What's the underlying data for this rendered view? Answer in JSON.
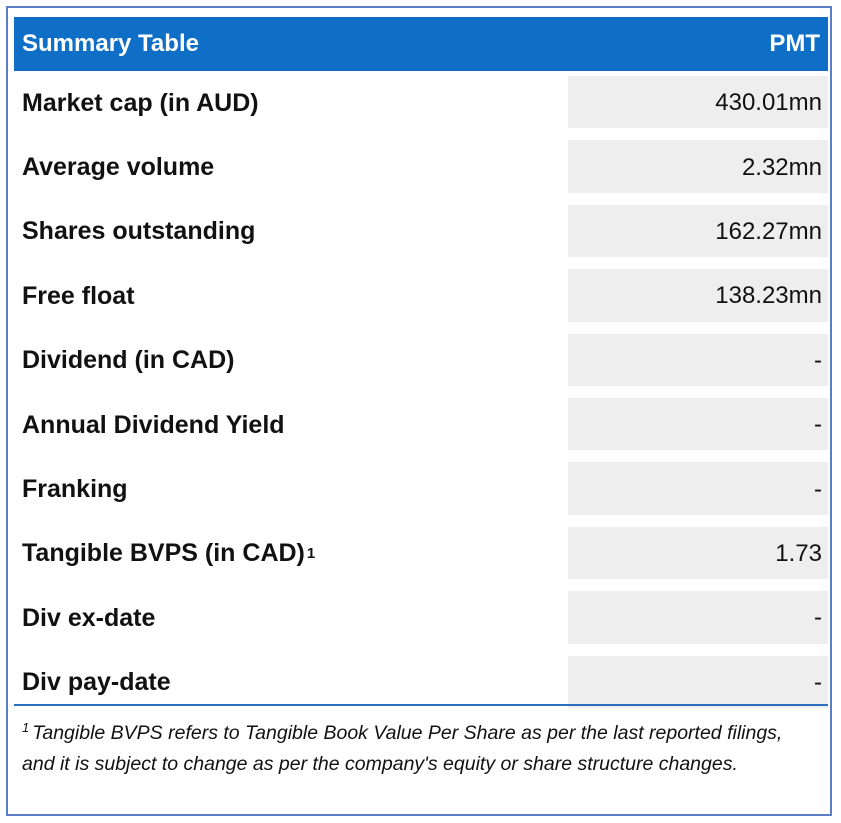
{
  "header": {
    "title": "Summary Table",
    "ticker": "PMT"
  },
  "rows": [
    {
      "label": "Market cap (in AUD)",
      "value": "430.01mn"
    },
    {
      "label": "Average volume",
      "value": "2.32mn"
    },
    {
      "label": "Shares outstanding",
      "value": "162.27mn"
    },
    {
      "label": "Free float",
      "value": "138.23mn"
    },
    {
      "label": "Dividend (in CAD)",
      "value": "-"
    },
    {
      "label": "Annual Dividend Yield",
      "value": "-"
    },
    {
      "label": "Franking",
      "value": "-"
    },
    {
      "label": "Tangible BVPS (in CAD)",
      "superscript": "1",
      "value": "1.73"
    },
    {
      "label": "Div ex-date",
      "value": "-"
    },
    {
      "label": "Div pay-date",
      "value": "-"
    }
  ],
  "footnote": {
    "marker": "1",
    "text": "Tangible BVPS refers to Tangible Book Value Per Share as per the last reported filings, and it is subject to change as per the company's equity or share structure changes."
  },
  "colors": {
    "header_bg": "#0f6fc6",
    "frame_border": "#5b7fc4",
    "value_cell_bg": "#eeeeee"
  }
}
